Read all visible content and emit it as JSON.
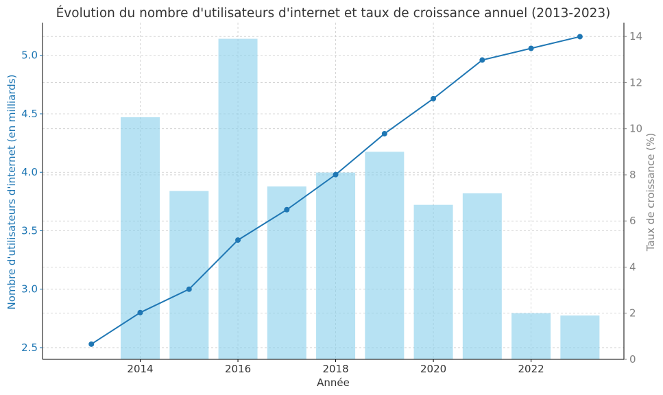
{
  "chart_data": {
    "type": "bar+line",
    "title": "Évolution du nombre d'utilisateurs d'internet et taux de croissance annuel (2013-2023)",
    "xlabel": "Année",
    "ylabel_left": "Nombre d'utilisateurs d'internet (en milliards)",
    "ylabel_right": "Taux de croissance (%)",
    "x": [
      2013,
      2014,
      2015,
      2016,
      2017,
      2018,
      2019,
      2020,
      2021,
      2022,
      2023
    ],
    "xlim": [
      2012,
      2023.9
    ],
    "x_ticks": [
      2014,
      2016,
      2018,
      2020,
      2022
    ],
    "x_tick_labels": [
      "2014",
      "2016",
      "2018",
      "2020",
      "2022"
    ],
    "left_axis": {
      "ylim": [
        2.4,
        5.28
      ],
      "ticks": [
        2.5,
        3.0,
        3.5,
        4.0,
        4.5,
        5.0
      ],
      "tick_labels": [
        "2.5",
        "3.0",
        "3.5",
        "4.0",
        "4.5",
        "5.0"
      ],
      "color": "#1f77b4"
    },
    "right_axis": {
      "ylim": [
        0,
        14.6
      ],
      "ticks": [
        0,
        2,
        4,
        6,
        8,
        10,
        12,
        14
      ],
      "tick_labels": [
        "0",
        "2",
        "4",
        "6",
        "8",
        "10",
        "12",
        "14"
      ],
      "color": "#808080"
    },
    "series": [
      {
        "kind": "line",
        "axis": "left",
        "color": "#1f77b4",
        "values": [
          2.53,
          2.8,
          3.0,
          3.42,
          3.68,
          3.98,
          4.33,
          4.63,
          4.96,
          5.06,
          5.16
        ]
      },
      {
        "kind": "bar",
        "axis": "right",
        "color": "#87ceeb",
        "x": [
          2014,
          2015,
          2016,
          2017,
          2018,
          2019,
          2020,
          2021,
          2022,
          2023
        ],
        "values": [
          10.5,
          7.3,
          13.9,
          7.5,
          8.1,
          9.0,
          6.7,
          7.2,
          2.0,
          1.9
        ]
      }
    ],
    "grid": true
  }
}
